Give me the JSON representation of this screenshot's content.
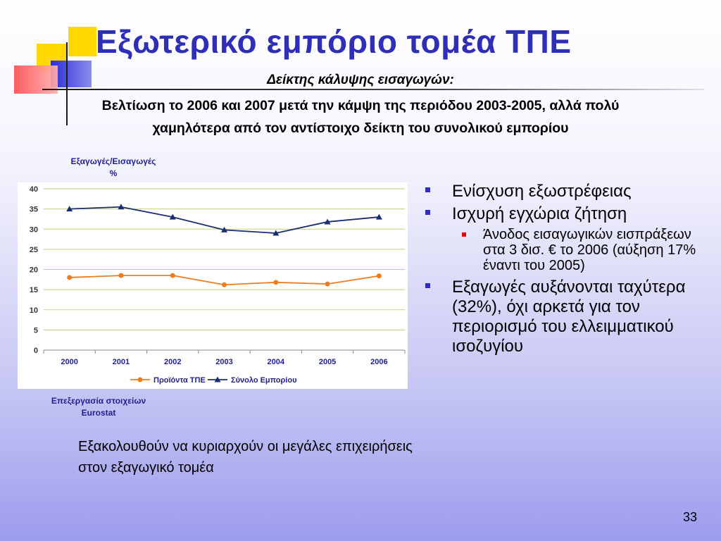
{
  "slide": {
    "title": "Εξωτερικό εμπόριο τομέα ΤΠΕ",
    "subtitle": "Δείκτης κάλυψης εισαγωγών:",
    "headline_line1": "Βελτίωση το 2006 και 2007 μετά την κάμψη της περιόδου 2003-2005, αλλά πολύ",
    "headline_line2": "χαμηλότερα από τον αντίστοιχο δείκτη του συνολικού εμπορίου",
    "y_caption_line1": "Εξαγωγές/Εισαγωγές",
    "y_caption_line2": "%",
    "source_line1": "Επεξεργασία στοιχείων",
    "source_line2": "Eurostat",
    "bullets": [
      "Ενίσχυση εξωστρέφειας",
      "Ισχυρή εγχώρια ζήτηση",
      "Άνοδος εισαγωγικών εισπράξεων στα 3 δισ. € το 2006 (αύξηση 17% έναντι του 2005)",
      "Εξαγωγές αυξάνονται ταχύτερα (32%), όχι αρκετά για τον περιορισμό του ελλειμματικού ισοζυγίου"
    ],
    "footnote": "Εξακολουθούν να κυριαρχούν οι μεγάλες επιχειρήσεις στον εξαγωγικό τομέα",
    "page_number": "33"
  },
  "colors": {
    "title": "#2e2eb8",
    "caption": "#1f1f90",
    "ict_series": "#ee7d20",
    "total_series": "#1a2d6e",
    "gridline": "#c8d070"
  },
  "chart_data": {
    "type": "line",
    "x": [
      "2000",
      "2001",
      "2002",
      "2003",
      "2004",
      "2005",
      "2006"
    ],
    "ylim": [
      0,
      40
    ],
    "yticks": [
      0,
      5,
      10,
      15,
      20,
      25,
      30,
      35,
      40
    ],
    "grid": true,
    "legend_position": "bottom",
    "series": [
      {
        "name": "Προϊόντα ΤΠΕ",
        "values": [
          18,
          18.5,
          18.5,
          16.2,
          16.8,
          16.4,
          18.4
        ],
        "color": "#ee7d20",
        "marker": "circle"
      },
      {
        "name": "Σύνολο Εμπορίου",
        "values": [
          35,
          35.5,
          33,
          29.8,
          29,
          31.8,
          33
        ],
        "color": "#1a2d6e",
        "marker": "triangle"
      }
    ]
  }
}
